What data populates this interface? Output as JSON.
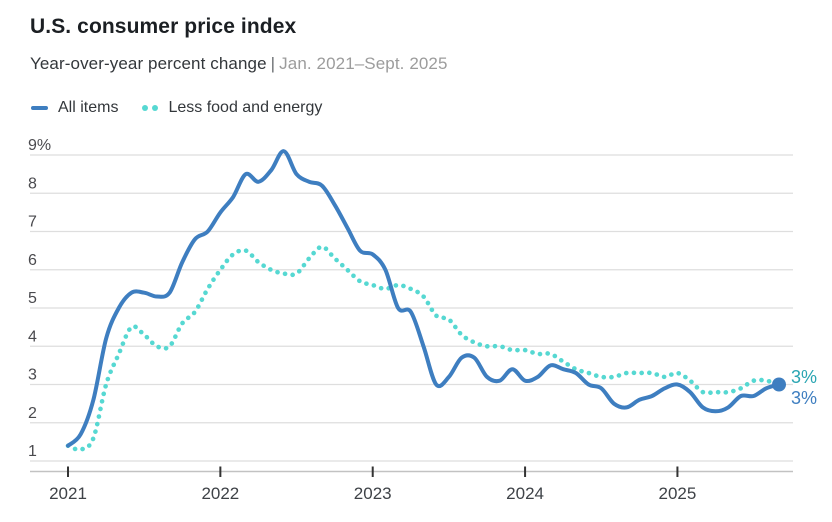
{
  "header": {
    "title": "U.S. consumer price index",
    "subtitle": "Year-over-year percent change",
    "subtitle_separator": "|",
    "subtitle_range": "Jan. 2021–Sept. 2025"
  },
  "legend": [
    {
      "label": "All items",
      "color": "#3E7EC0",
      "style": "solid"
    },
    {
      "label": "Less food and energy",
      "color": "#56D8D2",
      "style": "dotted"
    }
  ],
  "colors": {
    "title": "#1B1F23",
    "subtitle": "#33373B",
    "subtitle_range": "#9C9C9C",
    "gridline": "#DEDEDE",
    "axis_baseline": "#C2C2C2",
    "tick": "#333333",
    "axis_label": "#4A4A4E",
    "all_items_blue": "#3E7EC0",
    "core_teal": "#56D8D2",
    "core_label_teal": "#2AA5B2"
  },
  "chart_data": {
    "type": "line",
    "title": "U.S. consumer price index",
    "subtitle": "Year-over-year percent change | Jan. 2021–Sept. 2025",
    "ylabel": "percent",
    "ylim": [
      1,
      9
    ],
    "grid": "horizontal",
    "legend_position": "top-left",
    "y_ticks": [
      9,
      8,
      7,
      6,
      5,
      4,
      3,
      2,
      1
    ],
    "y_tick_labels": [
      "9%",
      "8",
      "7",
      "6",
      "5",
      "4",
      "3",
      "2",
      "1"
    ],
    "x_tick_labels": [
      "2021",
      "2022",
      "2023",
      "2024",
      "2025"
    ],
    "x_tick_months": [
      "2021-01",
      "2022-01",
      "2023-01",
      "2024-01",
      "2025-01"
    ],
    "x": [
      "2021-01",
      "2021-02",
      "2021-03",
      "2021-04",
      "2021-05",
      "2021-06",
      "2021-07",
      "2021-08",
      "2021-09",
      "2021-10",
      "2021-11",
      "2021-12",
      "2022-01",
      "2022-02",
      "2022-03",
      "2022-04",
      "2022-05",
      "2022-06",
      "2022-07",
      "2022-08",
      "2022-09",
      "2022-10",
      "2022-11",
      "2022-12",
      "2023-01",
      "2023-02",
      "2023-03",
      "2023-04",
      "2023-05",
      "2023-06",
      "2023-07",
      "2023-08",
      "2023-09",
      "2023-10",
      "2023-11",
      "2023-12",
      "2024-01",
      "2024-02",
      "2024-03",
      "2024-04",
      "2024-05",
      "2024-06",
      "2024-07",
      "2024-08",
      "2024-09",
      "2024-10",
      "2024-11",
      "2024-12",
      "2025-01",
      "2025-02",
      "2025-03",
      "2025-04",
      "2025-05",
      "2025-06",
      "2025-07",
      "2025-08",
      "2025-09"
    ],
    "series": [
      {
        "name": "All items",
        "style": "solid",
        "color": "#3E7EC0",
        "end_label": "3%",
        "end_label_color": "#3E7EC0",
        "end_marker": true,
        "values": [
          1.4,
          1.7,
          2.6,
          4.2,
          5.0,
          5.4,
          5.4,
          5.3,
          5.4,
          6.2,
          6.8,
          7.0,
          7.5,
          7.9,
          8.5,
          8.3,
          8.6,
          9.1,
          8.5,
          8.3,
          8.2,
          7.7,
          7.1,
          6.5,
          6.4,
          6.0,
          5.0,
          4.9,
          4.0,
          3.0,
          3.2,
          3.7,
          3.7,
          3.2,
          3.1,
          3.4,
          3.1,
          3.2,
          3.5,
          3.4,
          3.3,
          3.0,
          2.9,
          2.5,
          2.4,
          2.6,
          2.7,
          2.9,
          3.0,
          2.8,
          2.4,
          2.3,
          2.4,
          2.7,
          2.7,
          2.9,
          3.0
        ]
      },
      {
        "name": "Less food and energy",
        "style": "dotted",
        "color": "#56D8D2",
        "end_label": "3%",
        "end_label_color": "#2AA5B2",
        "end_marker": false,
        "values": [
          1.4,
          1.3,
          1.6,
          3.0,
          3.8,
          4.5,
          4.3,
          4.0,
          4.0,
          4.6,
          4.9,
          5.5,
          6.0,
          6.4,
          6.5,
          6.2,
          6.0,
          5.9,
          5.9,
          6.3,
          6.6,
          6.3,
          6.0,
          5.7,
          5.6,
          5.5,
          5.6,
          5.5,
          5.3,
          4.8,
          4.7,
          4.3,
          4.1,
          4.0,
          4.0,
          3.9,
          3.9,
          3.8,
          3.8,
          3.6,
          3.4,
          3.3,
          3.2,
          3.2,
          3.3,
          3.3,
          3.3,
          3.2,
          3.3,
          3.1,
          2.8,
          2.8,
          2.8,
          2.9,
          3.1,
          3.1,
          3.0
        ]
      }
    ]
  }
}
